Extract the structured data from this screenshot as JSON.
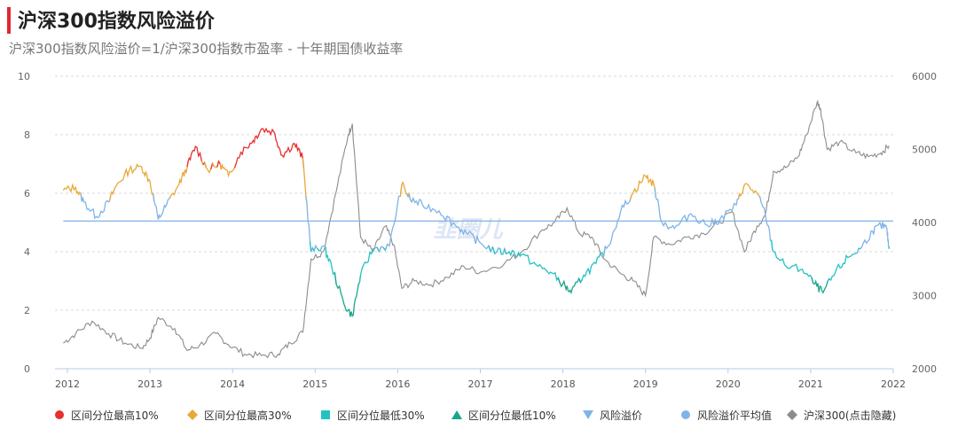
{
  "title": "沪深300指数风险溢价",
  "subtitle": "沪深300指数风险溢价=1/沪深300指数市盈率 - 十年期国债收益率",
  "watermark": "韭圈儿",
  "chart_data": {
    "type": "line",
    "x_ticks": [
      "2012",
      "2013",
      "2014",
      "2015",
      "2016",
      "2017",
      "2018",
      "2019",
      "2020",
      "2021",
      "2022"
    ],
    "y_left": {
      "range": [
        0,
        10
      ],
      "ticks": [
        "0",
        "2",
        "4",
        "6",
        "8",
        "10"
      ]
    },
    "y_right": {
      "range": [
        2000,
        6000
      ],
      "ticks": [
        "2000",
        "3000",
        "4000",
        "5000",
        "6000"
      ]
    },
    "grid": "horizontal-dashed",
    "legend_position": "bottom",
    "series": [
      {
        "name": "风险溢价",
        "axis": "left",
        "color": "#80b3e8",
        "points": [
          [
            2011.95,
            6.1
          ],
          [
            2012.1,
            6.2
          ],
          [
            2012.2,
            5.7
          ],
          [
            2012.35,
            5.2
          ],
          [
            2012.5,
            5.7
          ],
          [
            2012.6,
            6.3
          ],
          [
            2012.75,
            6.8
          ],
          [
            2012.9,
            6.9
          ],
          [
            2013.0,
            6.4
          ],
          [
            2013.1,
            5.1
          ],
          [
            2013.2,
            5.6
          ],
          [
            2013.35,
            6.3
          ],
          [
            2013.45,
            6.9
          ],
          [
            2013.55,
            7.6
          ],
          [
            2013.7,
            6.8
          ],
          [
            2013.85,
            7.0
          ],
          [
            2013.95,
            6.6
          ],
          [
            2014.1,
            7.4
          ],
          [
            2014.25,
            7.8
          ],
          [
            2014.35,
            8.2
          ],
          [
            2014.5,
            8.1
          ],
          [
            2014.6,
            7.3
          ],
          [
            2014.75,
            7.7
          ],
          [
            2014.85,
            7.2
          ],
          [
            2014.95,
            4.0
          ],
          [
            2015.1,
            4.2
          ],
          [
            2015.2,
            3.5
          ],
          [
            2015.35,
            2.2
          ],
          [
            2015.45,
            1.8
          ],
          [
            2015.55,
            3.2
          ],
          [
            2015.7,
            4.1
          ],
          [
            2015.9,
            4.2
          ],
          [
            2016.05,
            6.3
          ],
          [
            2016.15,
            5.8
          ],
          [
            2016.3,
            5.6
          ],
          [
            2016.5,
            5.4
          ],
          [
            2016.7,
            4.9
          ],
          [
            2016.85,
            4.6
          ],
          [
            2017.0,
            4.3
          ],
          [
            2017.2,
            4.0
          ],
          [
            2017.35,
            4.0
          ],
          [
            2017.5,
            3.9
          ],
          [
            2017.7,
            3.5
          ],
          [
            2017.85,
            3.3
          ],
          [
            2018.0,
            2.9
          ],
          [
            2018.1,
            2.6
          ],
          [
            2018.25,
            3.2
          ],
          [
            2018.4,
            3.6
          ],
          [
            2018.55,
            4.2
          ],
          [
            2018.7,
            5.4
          ],
          [
            2018.85,
            6.0
          ],
          [
            2019.0,
            6.6
          ],
          [
            2019.1,
            6.3
          ],
          [
            2019.2,
            5.0
          ],
          [
            2019.35,
            4.8
          ],
          [
            2019.55,
            5.3
          ],
          [
            2019.75,
            4.9
          ],
          [
            2019.9,
            5.1
          ],
          [
            2020.1,
            5.6
          ],
          [
            2020.2,
            6.3
          ],
          [
            2020.35,
            6.0
          ],
          [
            2020.45,
            5.3
          ],
          [
            2020.55,
            4.0
          ],
          [
            2020.7,
            3.5
          ],
          [
            2020.9,
            3.4
          ],
          [
            2021.05,
            2.9
          ],
          [
            2021.15,
            2.6
          ],
          [
            2021.3,
            3.3
          ],
          [
            2021.45,
            3.8
          ],
          [
            2021.6,
            4.1
          ],
          [
            2021.75,
            4.7
          ],
          [
            2021.85,
            4.9
          ],
          [
            2021.92,
            4.8
          ],
          [
            2021.95,
            4.1
          ]
        ]
      },
      {
        "name": "风险溢价平均值",
        "axis": "left",
        "color": "#7fb2e5",
        "value": 5.05
      },
      {
        "name": "沪深300(点击隐藏)",
        "axis": "right",
        "color": "#8c8c8c",
        "points": [
          [
            2011.95,
            2350
          ],
          [
            2012.1,
            2480
          ],
          [
            2012.3,
            2650
          ],
          [
            2012.5,
            2480
          ],
          [
            2012.7,
            2350
          ],
          [
            2012.9,
            2280
          ],
          [
            2013.0,
            2420
          ],
          [
            2013.1,
            2700
          ],
          [
            2013.3,
            2550
          ],
          [
            2013.45,
            2250
          ],
          [
            2013.6,
            2320
          ],
          [
            2013.8,
            2480
          ],
          [
            2013.95,
            2330
          ],
          [
            2014.15,
            2200
          ],
          [
            2014.35,
            2180
          ],
          [
            2014.55,
            2200
          ],
          [
            2014.7,
            2350
          ],
          [
            2014.85,
            2500
          ],
          [
            2014.95,
            3500
          ],
          [
            2015.1,
            3600
          ],
          [
            2015.25,
            4400
          ],
          [
            2015.4,
            5200
          ],
          [
            2015.45,
            5350
          ],
          [
            2015.55,
            3800
          ],
          [
            2015.7,
            3600
          ],
          [
            2015.85,
            3950
          ],
          [
            2015.95,
            3700
          ],
          [
            2016.05,
            3100
          ],
          [
            2016.2,
            3200
          ],
          [
            2016.4,
            3150
          ],
          [
            2016.6,
            3250
          ],
          [
            2016.8,
            3400
          ],
          [
            2017.0,
            3320
          ],
          [
            2017.3,
            3450
          ],
          [
            2017.5,
            3600
          ],
          [
            2017.75,
            3900
          ],
          [
            2017.9,
            4000
          ],
          [
            2018.05,
            4200
          ],
          [
            2018.2,
            3850
          ],
          [
            2018.35,
            3800
          ],
          [
            2018.5,
            3500
          ],
          [
            2018.7,
            3300
          ],
          [
            2018.85,
            3200
          ],
          [
            2019.0,
            3000
          ],
          [
            2019.1,
            3800
          ],
          [
            2019.3,
            3700
          ],
          [
            2019.5,
            3800
          ],
          [
            2019.7,
            3850
          ],
          [
            2019.9,
            4000
          ],
          [
            2020.05,
            4150
          ],
          [
            2020.2,
            3600
          ],
          [
            2020.35,
            3950
          ],
          [
            2020.45,
            4100
          ],
          [
            2020.55,
            4700
          ],
          [
            2020.7,
            4750
          ],
          [
            2020.85,
            4900
          ],
          [
            2020.95,
            5200
          ],
          [
            2021.08,
            5650
          ],
          [
            2021.12,
            5550
          ],
          [
            2021.2,
            5000
          ],
          [
            2021.35,
            5100
          ],
          [
            2021.55,
            4950
          ],
          [
            2021.7,
            4900
          ],
          [
            2021.85,
            4950
          ],
          [
            2021.95,
            5050
          ]
        ]
      }
    ],
    "percentile_bands": [
      {
        "name": "区间分位最高10%",
        "color": "#e8302f",
        "marker": "circle",
        "threshold_min": 7.0
      },
      {
        "name": "区间分位最高30%",
        "color": "#e8a93a",
        "marker": "diamond",
        "threshold_min": 5.9
      },
      {
        "name": "区间分位最低30%",
        "color": "#23c2c2",
        "marker": "square",
        "threshold_max": 4.1
      },
      {
        "name": "区间分位最低10%",
        "color": "#1aa68a",
        "marker": "triangle",
        "threshold_max": 3.0
      }
    ],
    "legend": [
      {
        "label": "区间分位最高10%",
        "color": "#e8302f",
        "marker": "circle"
      },
      {
        "label": "区间分位最高30%",
        "color": "#e8a93a",
        "marker": "diamond"
      },
      {
        "label": "区间分位最低30%",
        "color": "#23c2c2",
        "marker": "square"
      },
      {
        "label": "区间分位最低10%",
        "color": "#1aa68a",
        "marker": "triangle"
      },
      {
        "label": "风险溢价",
        "color": "#80b3e8",
        "marker": "triangle-down"
      },
      {
        "label": "风险溢价平均值",
        "color": "#80b3e8",
        "marker": "circle"
      },
      {
        "label": "沪深300(点击隐藏)",
        "color": "#8c8c8c",
        "marker": "diamond"
      }
    ]
  }
}
